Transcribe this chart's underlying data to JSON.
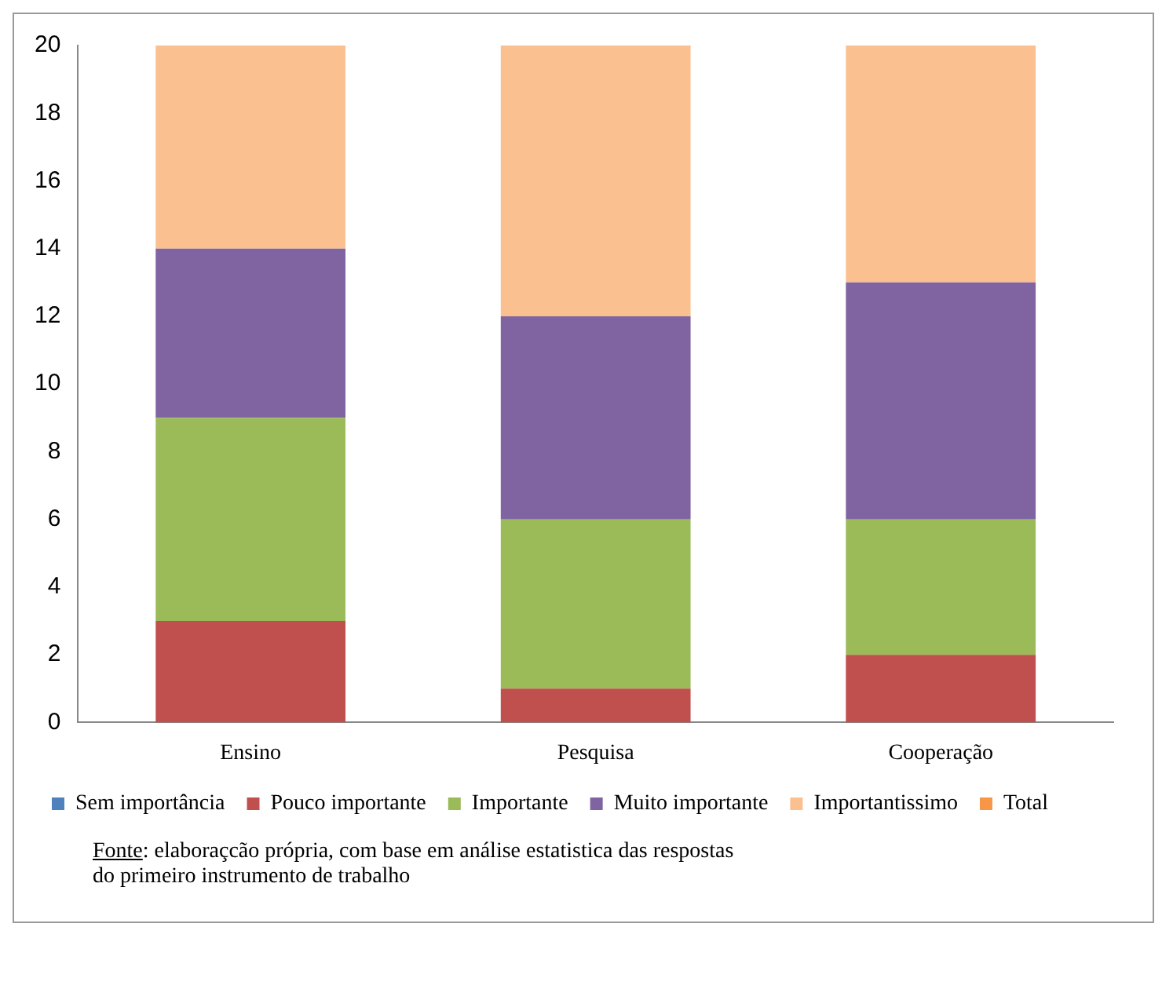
{
  "chart_data": {
    "type": "bar",
    "stacked": true,
    "categories": [
      "Ensino",
      "Pesquisa",
      "Cooperação"
    ],
    "series": [
      {
        "name": "Sem importância",
        "color": "#4f81bd",
        "values": [
          0,
          0,
          0
        ]
      },
      {
        "name": "Pouco importante",
        "color": "#c0504d",
        "values": [
          3,
          1,
          2
        ]
      },
      {
        "name": "Importante",
        "color": "#9bbb59",
        "values": [
          6,
          5,
          4
        ]
      },
      {
        "name": "Muito importante",
        "color": "#8064a2",
        "values": [
          5,
          6,
          7
        ]
      },
      {
        "name": "Importantissimo",
        "color": "#fac090",
        "values": [
          6,
          8,
          7
        ]
      },
      {
        "name": "Total",
        "color": "#f79646",
        "values": [
          null,
          null,
          null
        ]
      }
    ],
    "ylim": [
      0,
      20
    ],
    "yticks": [
      0,
      2,
      4,
      6,
      8,
      10,
      12,
      14,
      16,
      18,
      20
    ],
    "grid": false,
    "legend": "bottom",
    "annotations": [
      "Fonte: elaboraçcão própria, com base em análise estatistica das respostas do primeiro instrumento de trabalho"
    ]
  }
}
